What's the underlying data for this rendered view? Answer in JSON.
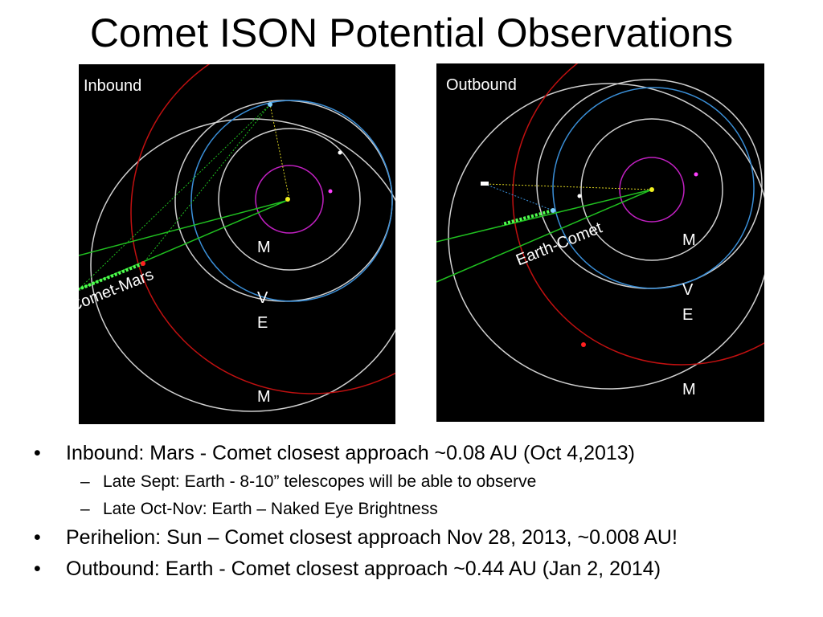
{
  "title": "Comet ISON Potential Observations",
  "panels": {
    "inbound": {
      "label": "Inbound",
      "line_label": "Comet-Mars",
      "planet_labels": {
        "m1": "M",
        "v": "V",
        "e": "E",
        "m2": "M"
      }
    },
    "outbound": {
      "label": "Outbound",
      "line_label": "Earth-Comet",
      "planet_labels": {
        "m1": "M",
        "v": "V",
        "e": "E",
        "m2": "M"
      }
    }
  },
  "colors": {
    "panel_bg": "#000000",
    "orbit_white": "#d0d0d0",
    "orbit_blue": "#3a8fd8",
    "orbit_red": "#c01010",
    "orbit_magenta": "#c020c0",
    "comet_path": "#20c020",
    "sightline": "#d8d020"
  },
  "bullets": [
    {
      "marker": "•",
      "text": "Inbound: Mars - Comet closest approach ~0.08 AU (Oct 4,2013)",
      "sub": [
        {
          "marker": "–",
          "text": "Late Sept: Earth -  8-10” telescopes will be able to observe"
        },
        {
          "marker": "–",
          "text": "Late Oct-Nov: Earth – Naked Eye Brightness"
        }
      ]
    },
    {
      "marker": "•",
      "text": "Perihelion: Sun – Comet closest approach Nov 28, 2013, ~0.008 AU!",
      "sub": []
    },
    {
      "marker": "•",
      "text": "Outbound: Earth - Comet closest approach ~0.44 AU (Jan 2, 2014)",
      "sub": []
    }
  ]
}
